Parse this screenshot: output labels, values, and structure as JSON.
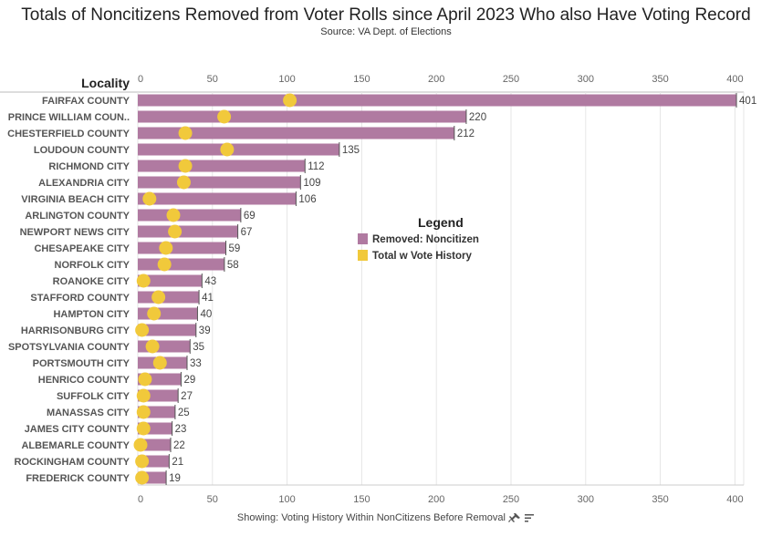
{
  "title": "Totals of Noncitizens Removed from Voter Rolls since April 2023 Who also Have Voting Record",
  "subtitle": "Source: VA Dept. of Elections",
  "footer": {
    "text": "Showing: Voting History Within NonCitizens Before Removal",
    "icons": [
      "pin-icon",
      "sort-icon"
    ]
  },
  "colors": {
    "bar": "#b07aa1",
    "dot": "#f1c93b",
    "grid": "#e6e6e6",
    "label": "#555555"
  },
  "chart_data": {
    "type": "bar",
    "orientation": "horizontal",
    "row_header": "Locality",
    "categories": [
      "FAIRFAX COUNTY",
      "PRINCE WILLIAM COUN..",
      "CHESTERFIELD COUNTY",
      "LOUDOUN COUNTY",
      "RICHMOND CITY",
      "ALEXANDRIA CITY",
      "VIRGINIA BEACH CITY",
      "ARLINGTON COUNTY",
      "NEWPORT NEWS CITY",
      "CHESAPEAKE CITY",
      "NORFOLK CITY",
      "ROANOKE CITY",
      "STAFFORD COUNTY",
      "HAMPTON CITY",
      "HARRISONBURG CITY",
      "SPOTSYLVANIA COUNTY",
      "PORTSMOUTH CITY",
      "HENRICO COUNTY",
      "SUFFOLK CITY",
      "MANASSAS CITY",
      "JAMES CITY COUNTY",
      "ALBEMARLE COUNTY",
      "ROCKINGHAM COUNTY",
      "FREDERICK COUNTY"
    ],
    "series": [
      {
        "name": "Removed: Noncitizen",
        "values": [
          401,
          220,
          212,
          135,
          112,
          109,
          106,
          69,
          67,
          59,
          58,
          43,
          41,
          40,
          39,
          35,
          33,
          29,
          27,
          25,
          23,
          22,
          21,
          19
        ]
      },
      {
        "name": "Total w Vote History",
        "values": [
          100,
          56,
          30,
          58,
          30,
          29,
          6,
          22,
          23,
          17,
          16,
          2,
          12,
          9,
          1,
          8,
          13,
          3,
          2,
          2,
          2,
          0,
          1,
          1
        ]
      }
    ],
    "xlim": [
      0,
      410
    ],
    "x_ticks": [
      0,
      50,
      100,
      150,
      200,
      250,
      300,
      350,
      400
    ],
    "legend": {
      "title": "Legend",
      "position": "center"
    },
    "grid": true
  }
}
